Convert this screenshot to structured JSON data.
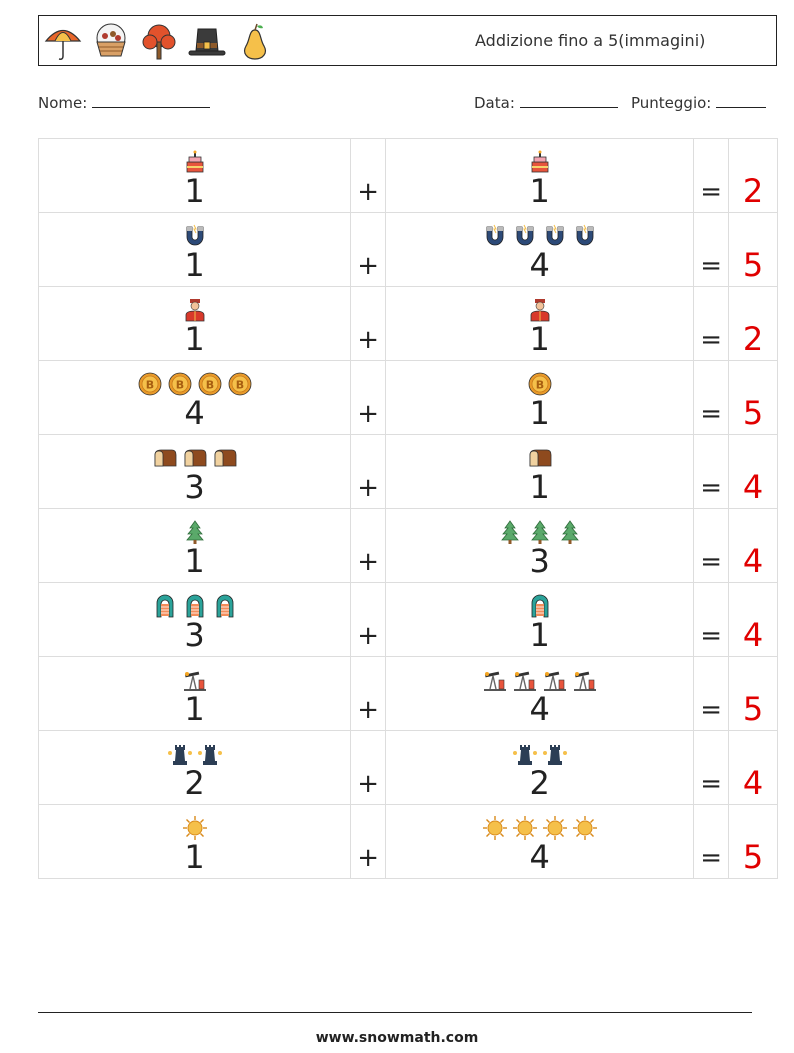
{
  "header": {
    "title": "Addizione fino a 5(immagini)",
    "icons": [
      "umbrella-icon",
      "basket-icon",
      "tree-icon",
      "pilgrim-hat-icon",
      "pear-icon"
    ]
  },
  "meta": {
    "name_label": "Nome:",
    "date_label": "Data:",
    "score_label": "Punteggio:"
  },
  "symbols": {
    "plus": "+",
    "equals": "="
  },
  "rows": [
    {
      "a": "1",
      "a_icon": "cake-icon",
      "b": "1",
      "b_icon": "cake-icon",
      "result": "2"
    },
    {
      "a": "1",
      "a_icon": "magnet-icon",
      "b": "4",
      "b_icon": "magnet-icon",
      "result": "5"
    },
    {
      "a": "1",
      "a_icon": "guard-icon",
      "b": "1",
      "b_icon": "guard-icon",
      "result": "2"
    },
    {
      "a": "4",
      "a_icon": "bitcoin-icon",
      "b": "1",
      "b_icon": "bitcoin-icon",
      "result": "5"
    },
    {
      "a": "3",
      "a_icon": "bread-icon",
      "b": "1",
      "b_icon": "bread-icon",
      "result": "4"
    },
    {
      "a": "1",
      "a_icon": "pine-tree-icon",
      "b": "3",
      "b_icon": "pine-tree-icon",
      "result": "4"
    },
    {
      "a": "3",
      "a_icon": "boat-icon",
      "b": "1",
      "b_icon": "boat-icon",
      "result": "4"
    },
    {
      "a": "1",
      "a_icon": "oil-pump-icon",
      "b": "4",
      "b_icon": "oil-pump-icon",
      "result": "5"
    },
    {
      "a": "2",
      "a_icon": "chess-rook-icon",
      "b": "2",
      "b_icon": "chess-rook-icon",
      "result": "4"
    },
    {
      "a": "1",
      "a_icon": "sun-icon",
      "b": "4",
      "b_icon": "sun-icon",
      "result": "5"
    }
  ],
  "footer": {
    "site": "www.snowmath.com"
  }
}
